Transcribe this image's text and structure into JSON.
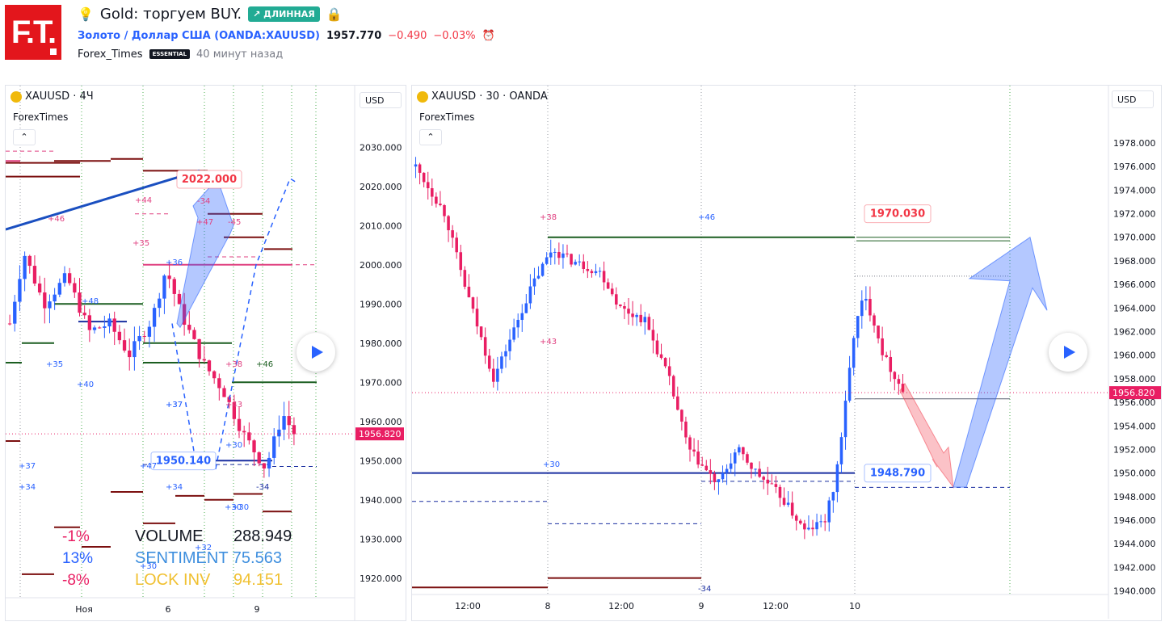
{
  "header": {
    "logo_text": "F.T.",
    "title": "Gold: торгуем BUY.",
    "direction_badge": "↗ ДЛИННАЯ",
    "symbol_name": "Золото / Доллар США",
    "symbol_ticker": "(OANDA:XAUUSD)",
    "last_price": "1957.770",
    "change": "−0.490",
    "change_pct": "−0.03%",
    "author": "Forex_Times",
    "author_badge": "ESSENTIAL",
    "posted": "40 минут назад"
  },
  "colors": {
    "up": "#2962ff",
    "down": "#e91e63",
    "green": "#1b5e20",
    "darkred": "#7b0f0f",
    "navy": "#1a2fa0",
    "accent_red": "#f23645",
    "badge": "#22ab94"
  },
  "chart_data": [
    {
      "type": "candlestick",
      "title": "XAUUSD · 4Ч",
      "subtitle": "ForexTimes",
      "currency": "USD",
      "yticks": [
        "2030.000",
        "2020.000",
        "2010.000",
        "2000.000",
        "1990.000",
        "1980.000",
        "1970.000",
        "1960.000",
        "1950.000",
        "1940.000",
        "1930.000",
        "1920.000"
      ],
      "ylim": [
        1915,
        2035
      ],
      "xticks": [
        "Ноя",
        "6",
        "9"
      ],
      "current_price": "1956.820",
      "price_labels": [
        "2022.000",
        "1950.140"
      ],
      "level_labels": [
        "+46",
        "+44",
        "+35",
        "+36",
        "+48",
        "-34",
        "+47",
        "-45",
        "+35",
        "+40",
        "+37",
        "+46",
        "+38",
        "+43",
        "+37",
        "+30",
        "+47",
        "+34",
        "+32",
        "+30",
        "-34",
        "+30",
        "+30",
        "+37",
        "+34"
      ],
      "stats": {
        "volume_label": "VOLUME",
        "volume_value": "288.949",
        "sentiment_label": "SENTIMENT",
        "sentiment_value": "75.563",
        "lock_label": "LOCK INV",
        "lock_value": "94.151",
        "pct_1": "-1%",
        "pct_2": "13%",
        "pct_3": "-8%"
      }
    },
    {
      "type": "candlestick",
      "title": "XAUUSD · 30 · OANDA",
      "subtitle": "ForexTimes",
      "currency": "USD",
      "yticks": [
        "1978.000",
        "1976.000",
        "1974.000",
        "1972.000",
        "1970.000",
        "1968.000",
        "1966.000",
        "1964.000",
        "1962.000",
        "1960.000",
        "1958.000",
        "1956.000",
        "1954.000",
        "1952.000",
        "1950.000",
        "1948.000",
        "1946.000",
        "1944.000",
        "1942.000",
        "1940.000"
      ],
      "ylim": [
        1939.7,
        1979.3
      ],
      "xticks": [
        "12:00",
        "8",
        "12:00",
        "9",
        "12:00",
        "10"
      ],
      "current_price": "1956.820",
      "price_labels": [
        "1970.030",
        "1948.790"
      ],
      "level_labels": [
        "+38",
        "+46",
        "+43",
        "+30",
        "-34"
      ],
      "target_high": 1970.0,
      "target_low": 1948.8
    }
  ]
}
